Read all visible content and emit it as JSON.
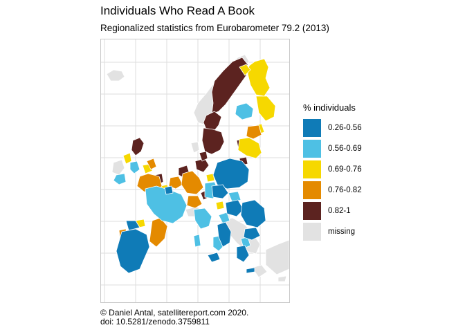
{
  "title": "Individuals Who Read A Book",
  "subtitle": "Regionalized statistics from Eurobarometer 79.2 (2013)",
  "caption": {
    "line1": "© Daniel Antal, satellitereport.com 2020.",
    "line2": "doi: 10.5281/zenodo.3759811"
  },
  "legend": {
    "title": "% individuals",
    "items": [
      {
        "label": "0.26-0.56",
        "color": "#0f7bb7"
      },
      {
        "label": "0.56-0.69",
        "color": "#4ec0e4"
      },
      {
        "label": "0.69-0.76",
        "color": "#f6d800"
      },
      {
        "label": "0.76-0.82",
        "color": "#e48a00"
      },
      {
        "label": "0.82-1",
        "color": "#5c2320"
      },
      {
        "label": "missing",
        "color": "#e2e2e2"
      }
    ]
  },
  "colors": {
    "grid": "#dedede",
    "missing": "#e2e2e2",
    "border": "#ffffff"
  }
}
